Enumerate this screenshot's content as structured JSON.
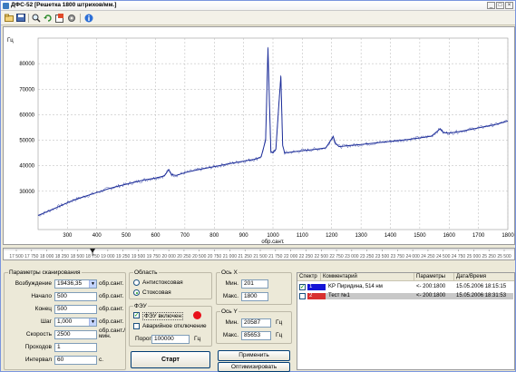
{
  "window": {
    "title": "ДФС-52 [Решетка 1800 штрихов/мм.]",
    "controls": [
      "_",
      "□",
      "×"
    ]
  },
  "toolbar": {
    "icons": [
      "open-icon",
      "save-icon",
      "zoom-icon",
      "refresh-icon",
      "export-icon",
      "settings-icon",
      "info-icon"
    ]
  },
  "chart_data": {
    "type": "line",
    "title": "",
    "ylabel": "Гц",
    "xlabel": "обр.сант.",
    "xlim": [
      200,
      1800
    ],
    "ylim": [
      15000,
      90000
    ],
    "xticks": [
      300,
      400,
      500,
      600,
      700,
      800,
      900,
      1000,
      1100,
      1200,
      1300,
      1400,
      1500,
      1600,
      1700,
      1800
    ],
    "yticks": [
      30000,
      40000,
      50000,
      60000,
      70000,
      80000
    ],
    "grid": true,
    "series": [
      {
        "color": "#1f2f9a",
        "x": [
          200,
          240,
          280,
          320,
          360,
          400,
          440,
          480,
          520,
          560,
          600,
          630,
          645,
          655,
          670,
          700,
          740,
          780,
          820,
          860,
          900,
          940,
          960,
          975,
          983,
          988,
          993,
          1000,
          1010,
          1020,
          1027,
          1033,
          1040,
          1060,
          1100,
          1140,
          1180,
          1205,
          1212,
          1225,
          1260,
          1300,
          1340,
          1380,
          1420,
          1460,
          1500,
          1540,
          1570,
          1580,
          1600,
          1640,
          1680,
          1720,
          1760,
          1800
        ],
        "values": [
          20500,
          22500,
          24500,
          26500,
          28000,
          29500,
          31000,
          32200,
          33300,
          34400,
          35200,
          36000,
          38500,
          36500,
          36200,
          37300,
          38300,
          39200,
          40100,
          41000,
          41800,
          42600,
          43500,
          50000,
          86000,
          65000,
          45500,
          45000,
          46500,
          64000,
          75000,
          48000,
          45000,
          45300,
          45900,
          46400,
          47000,
          51500,
          49000,
          47500,
          47900,
          48300,
          48800,
          49300,
          49800,
          50300,
          50900,
          51600,
          54500,
          53000,
          52800,
          53500,
          54400,
          55300,
          56200,
          57500
        ]
      }
    ]
  },
  "scale_ruler": {
    "ticks": [
      "17 500",
      "17 750",
      "18 000",
      "18 250",
      "18 500",
      "18 750",
      "19 000",
      "19 250",
      "19 500",
      "19 750",
      "20 000",
      "20 250",
      "20 500",
      "20 750",
      "21 000",
      "21 250",
      "21 500",
      "21 750",
      "22 000",
      "22 250",
      "22 500",
      "22 750",
      "23 000",
      "23 250",
      "23 500",
      "23 750",
      "24 000",
      "24 250",
      "24 500",
      "24 750",
      "25 000",
      "25 250",
      "25 500"
    ],
    "marker_value": "18 750"
  },
  "scan_params": {
    "title": "Параметры сканирования",
    "excitation_label": "Возбуждение",
    "excitation_value": "19436,35",
    "start_label": "Начало",
    "start_value": "500",
    "end_label": "Конец",
    "end_value": "500",
    "step_label": "Шаг",
    "step_value": "1,000",
    "speed_label": "Скорость",
    "speed_value": "2500",
    "passes_label": "Проходов",
    "passes_value": "1",
    "interval_label": "Интервал",
    "interval_value": "60",
    "unit_cm": "обр.сант.",
    "unit_speed": "обр.сант./мин.",
    "unit_sec": "с."
  },
  "region": {
    "title": "Область",
    "anti_stokes": "Антистоксовая",
    "stokes": "Стоксовая",
    "selected": "Стоксовая"
  },
  "pmt": {
    "title": "ФЭУ",
    "on_label": "ФЭУ включен",
    "on_checked": true,
    "emergency_label": "Аварийное отключение",
    "emergency_checked": false,
    "threshold_label": "Порог",
    "threshold_value": "100000",
    "threshold_unit": "Гц",
    "status_color": "#e8101a"
  },
  "start_button": "Старт",
  "axis_x": {
    "title": "Ось X",
    "min_label": "Мин.",
    "min_value": "201",
    "max_label": "Макс.",
    "max_value": "1800"
  },
  "axis_y": {
    "title": "Ось Y",
    "min_label": "Мин.",
    "min_value": "20587",
    "max_label": "Макс.",
    "max_value": "85653",
    "unit": "Гц"
  },
  "apply_button": "Применить",
  "optimize_button": "Оптимизировать",
  "spectra_table": {
    "headers": [
      "Спектр",
      "Комментарий",
      "Параметры",
      "Дата/Время"
    ],
    "rows": [
      {
        "checked": true,
        "num": "1",
        "color": "#1515d6",
        "comment": "KP Пиридина, 514 нм",
        "params": "<- 200:1800",
        "datetime": "15.05.2006 18:15:15"
      },
      {
        "checked": false,
        "num": "2",
        "color": "#d83030",
        "comment": "Тест №1",
        "params": "<- 200:1800",
        "datetime": "15.05.2006 18:31:53"
      }
    ]
  }
}
